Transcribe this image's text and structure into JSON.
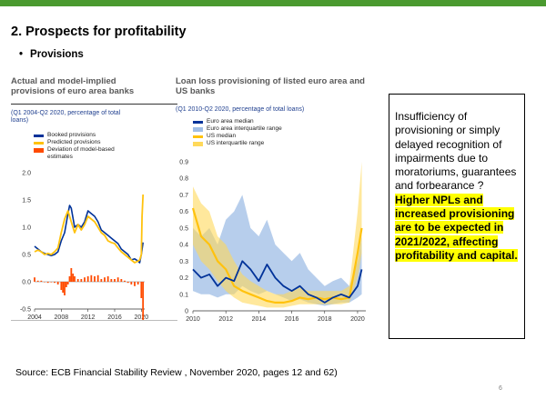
{
  "slide": {
    "title": "2. Prospects for profitability",
    "bullet": "Provisions",
    "bullet_symbol": "•",
    "source": "Source: ECB Financial Stability Review , November 2020, pages 12 and 62)",
    "page_number": "6",
    "callout": {
      "normal_text": "Insufficiency of provisioning or simply delayed recognition of impairments due to moratoriums, guarantees and forbearance ?",
      "highlight_text": "Higher NPLs and increased provisioning are to be expected in 2021/2022, affecting profitability and capital."
    }
  },
  "colors": {
    "accent_green": "#4a9a2f",
    "euro_blue": "#003299",
    "euro_band": "#9fbde6",
    "yellow": "#ffc20e",
    "us_band": "#ffd95a",
    "orange": "#ff4b00",
    "highlight": "#ffff00"
  },
  "chart_data": [
    {
      "type": "line",
      "title_line1": "Actual and model-implied",
      "title_line2": "provisions of euro area banks",
      "subtitle_line1": "(Q1 2004-Q2 2020, percentage of total",
      "subtitle_line2": "loans)",
      "legend": [
        "Booked provisions",
        "Predicted provisions",
        "Deviation of model-based",
        "estimates"
      ],
      "ylim": [
        -0.5,
        2.0
      ],
      "yticks": [
        "2.0",
        "1.5",
        "1.0",
        "0.5",
        "0.0",
        "-0.5"
      ],
      "xlim": [
        2004,
        2020.5
      ],
      "xticks": [
        "2004",
        "2008",
        "2012",
        "2016",
        "2020"
      ],
      "series": [
        {
          "name": "Booked provisions",
          "x": [
            2004.0,
            2004.5,
            2005.0,
            2005.5,
            2006.0,
            2006.5,
            2007.0,
            2007.5,
            2008.0,
            2008.5,
            2009.0,
            2009.25,
            2009.5,
            2010.0,
            2010.5,
            2011.0,
            2011.5,
            2012.0,
            2012.5,
            2013.0,
            2013.5,
            2014.0,
            2014.5,
            2015.0,
            2015.5,
            2016.0,
            2016.5,
            2017.0,
            2017.5,
            2018.0,
            2018.5,
            2019.0,
            2019.5,
            2019.75,
            2020.0,
            2020.25
          ],
          "values": [
            0.65,
            0.6,
            0.55,
            0.52,
            0.5,
            0.48,
            0.5,
            0.55,
            0.75,
            0.9,
            1.25,
            1.4,
            1.35,
            1.0,
            1.05,
            1.0,
            1.1,
            1.3,
            1.25,
            1.2,
            1.1,
            0.95,
            0.9,
            0.85,
            0.8,
            0.75,
            0.7,
            0.6,
            0.55,
            0.5,
            0.4,
            0.42,
            0.38,
            0.35,
            0.5,
            0.72
          ]
        },
        {
          "name": "Predicted provisions",
          "x": [
            2004.0,
            2004.5,
            2005.0,
            2005.5,
            2006.0,
            2006.5,
            2007.0,
            2007.5,
            2008.0,
            2008.5,
            2009.0,
            2009.5,
            2010.0,
            2010.5,
            2011.0,
            2011.5,
            2012.0,
            2012.5,
            2013.0,
            2013.5,
            2014.0,
            2014.5,
            2015.0,
            2015.5,
            2016.0,
            2016.5,
            2017.0,
            2017.5,
            2018.0,
            2018.5,
            2019.0,
            2019.5,
            2019.75,
            2020.0,
            2020.1,
            2020.25
          ],
          "values": [
            0.55,
            0.58,
            0.55,
            0.5,
            0.52,
            0.5,
            0.55,
            0.62,
            0.9,
            1.15,
            1.3,
            1.1,
            0.9,
            1.05,
            0.95,
            1.05,
            1.2,
            1.15,
            1.1,
            1.0,
            0.9,
            0.85,
            0.75,
            0.72,
            0.7,
            0.62,
            0.55,
            0.5,
            0.45,
            0.4,
            0.35,
            0.38,
            0.4,
            0.5,
            1.2,
            1.6
          ]
        },
        {
          "name": "Deviation of model-based estimates",
          "x": [
            2004.0,
            2004.5,
            2005.0,
            2005.5,
            2006.0,
            2006.5,
            2007.0,
            2007.5,
            2008.0,
            2008.25,
            2008.5,
            2008.75,
            2009.0,
            2009.25,
            2009.5,
            2009.75,
            2010.0,
            2010.5,
            2011.0,
            2011.5,
            2012.0,
            2012.5,
            2013.0,
            2013.5,
            2014.0,
            2014.5,
            2015.0,
            2015.5,
            2016.0,
            2016.5,
            2017.0,
            2017.5,
            2018.0,
            2018.5,
            2019.0,
            2019.5,
            2020.0,
            2020.25
          ],
          "values": [
            0.08,
            0.02,
            0.02,
            0.0,
            -0.02,
            -0.01,
            -0.02,
            -0.05,
            -0.15,
            -0.2,
            -0.25,
            -0.1,
            -0.05,
            0.1,
            0.25,
            0.15,
            0.1,
            0.05,
            0.05,
            0.08,
            0.1,
            0.12,
            0.1,
            0.12,
            0.05,
            0.08,
            0.1,
            0.05,
            0.05,
            0.08,
            0.05,
            0.02,
            -0.02,
            -0.05,
            -0.08,
            -0.05,
            -0.3,
            -0.7
          ]
        }
      ]
    },
    {
      "type": "area",
      "title_line1": "Loan loss provisioning of listed euro area and",
      "title_line2": "US banks",
      "subtitle": "(Q1 2010-Q2 2020, percentage of total loans)",
      "legend": [
        "Euro area median",
        "Euro area interquartile range",
        "US median",
        "US interquartile range"
      ],
      "ylim": [
        0,
        0.9
      ],
      "yticks": [
        "0.9",
        "0.8",
        "0.7",
        "0.6",
        "0.5",
        "0.4",
        "0.3",
        "0.2",
        "0.1",
        "0"
      ],
      "xlim": [
        2010,
        2020.5
      ],
      "xticks": [
        "2010",
        "2012",
        "2014",
        "2016",
        "2018",
        "2020"
      ],
      "x": [
        2010.0,
        2010.5,
        2011.0,
        2011.5,
        2012.0,
        2012.5,
        2013.0,
        2013.5,
        2014.0,
        2014.5,
        2015.0,
        2015.5,
        2016.0,
        2016.5,
        2017.0,
        2017.5,
        2018.0,
        2018.5,
        2019.0,
        2019.5,
        2020.0,
        2020.25
      ],
      "euro_median": [
        0.25,
        0.2,
        0.22,
        0.15,
        0.2,
        0.18,
        0.3,
        0.25,
        0.18,
        0.28,
        0.2,
        0.15,
        0.12,
        0.15,
        0.1,
        0.08,
        0.05,
        0.08,
        0.1,
        0.08,
        0.15,
        0.25
      ],
      "euro_q1": [
        0.12,
        0.1,
        0.1,
        0.08,
        0.1,
        0.1,
        0.15,
        0.12,
        0.1,
        0.12,
        0.1,
        0.08,
        0.06,
        0.07,
        0.05,
        0.04,
        0.03,
        0.04,
        0.05,
        0.05,
        0.08,
        0.1
      ],
      "euro_q3": [
        0.5,
        0.45,
        0.5,
        0.4,
        0.55,
        0.6,
        0.7,
        0.5,
        0.45,
        0.55,
        0.4,
        0.35,
        0.3,
        0.35,
        0.25,
        0.2,
        0.15,
        0.18,
        0.2,
        0.15,
        0.3,
        0.45
      ],
      "us_median": [
        0.62,
        0.45,
        0.4,
        0.3,
        0.25,
        0.15,
        0.12,
        0.1,
        0.08,
        0.06,
        0.05,
        0.05,
        0.06,
        0.08,
        0.07,
        0.08,
        0.07,
        0.08,
        0.07,
        0.08,
        0.35,
        0.5
      ],
      "us_q1": [
        0.4,
        0.3,
        0.25,
        0.18,
        0.12,
        0.08,
        0.05,
        0.04,
        0.03,
        0.02,
        0.02,
        0.02,
        0.03,
        0.04,
        0.04,
        0.04,
        0.04,
        0.04,
        0.04,
        0.05,
        0.2,
        0.35
      ],
      "us_q3": [
        0.75,
        0.65,
        0.6,
        0.45,
        0.4,
        0.3,
        0.22,
        0.18,
        0.15,
        0.12,
        0.1,
        0.1,
        0.12,
        0.14,
        0.12,
        0.12,
        0.12,
        0.12,
        0.12,
        0.15,
        0.6,
        0.9
      ]
    }
  ]
}
